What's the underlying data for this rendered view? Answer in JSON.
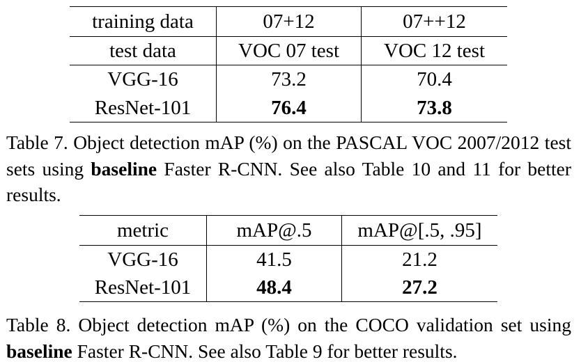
{
  "table7": {
    "header_rows": [
      [
        "training data",
        "07+12",
        "07++12"
      ],
      [
        "test data",
        "VOC 07 test",
        "VOC 12 test"
      ]
    ],
    "rows": [
      [
        "VGG-16",
        "73.2",
        "70.4"
      ],
      [
        "ResNet-101",
        "76.4",
        "73.8"
      ]
    ],
    "caption": {
      "pre": "Table 7. Object detection mAP (%) on the PASCAL VOC 2007/2012 test sets using ",
      "bold": "baseline",
      "post": " Faster R-CNN. See also Table 10 and 11 for better results."
    }
  },
  "table8": {
    "header": [
      "metric",
      "mAP@.5",
      "mAP@[.5, .95]"
    ],
    "rows": [
      [
        "VGG-16",
        "41.5",
        "21.2"
      ],
      [
        "ResNet-101",
        "48.4",
        "27.2"
      ]
    ],
    "caption": {
      "pre": "Table 8. Object detection mAP (%) on the COCO validation set using ",
      "bold": "baseline",
      "post": " Faster R-CNN. See also Table 9 for better results."
    }
  }
}
